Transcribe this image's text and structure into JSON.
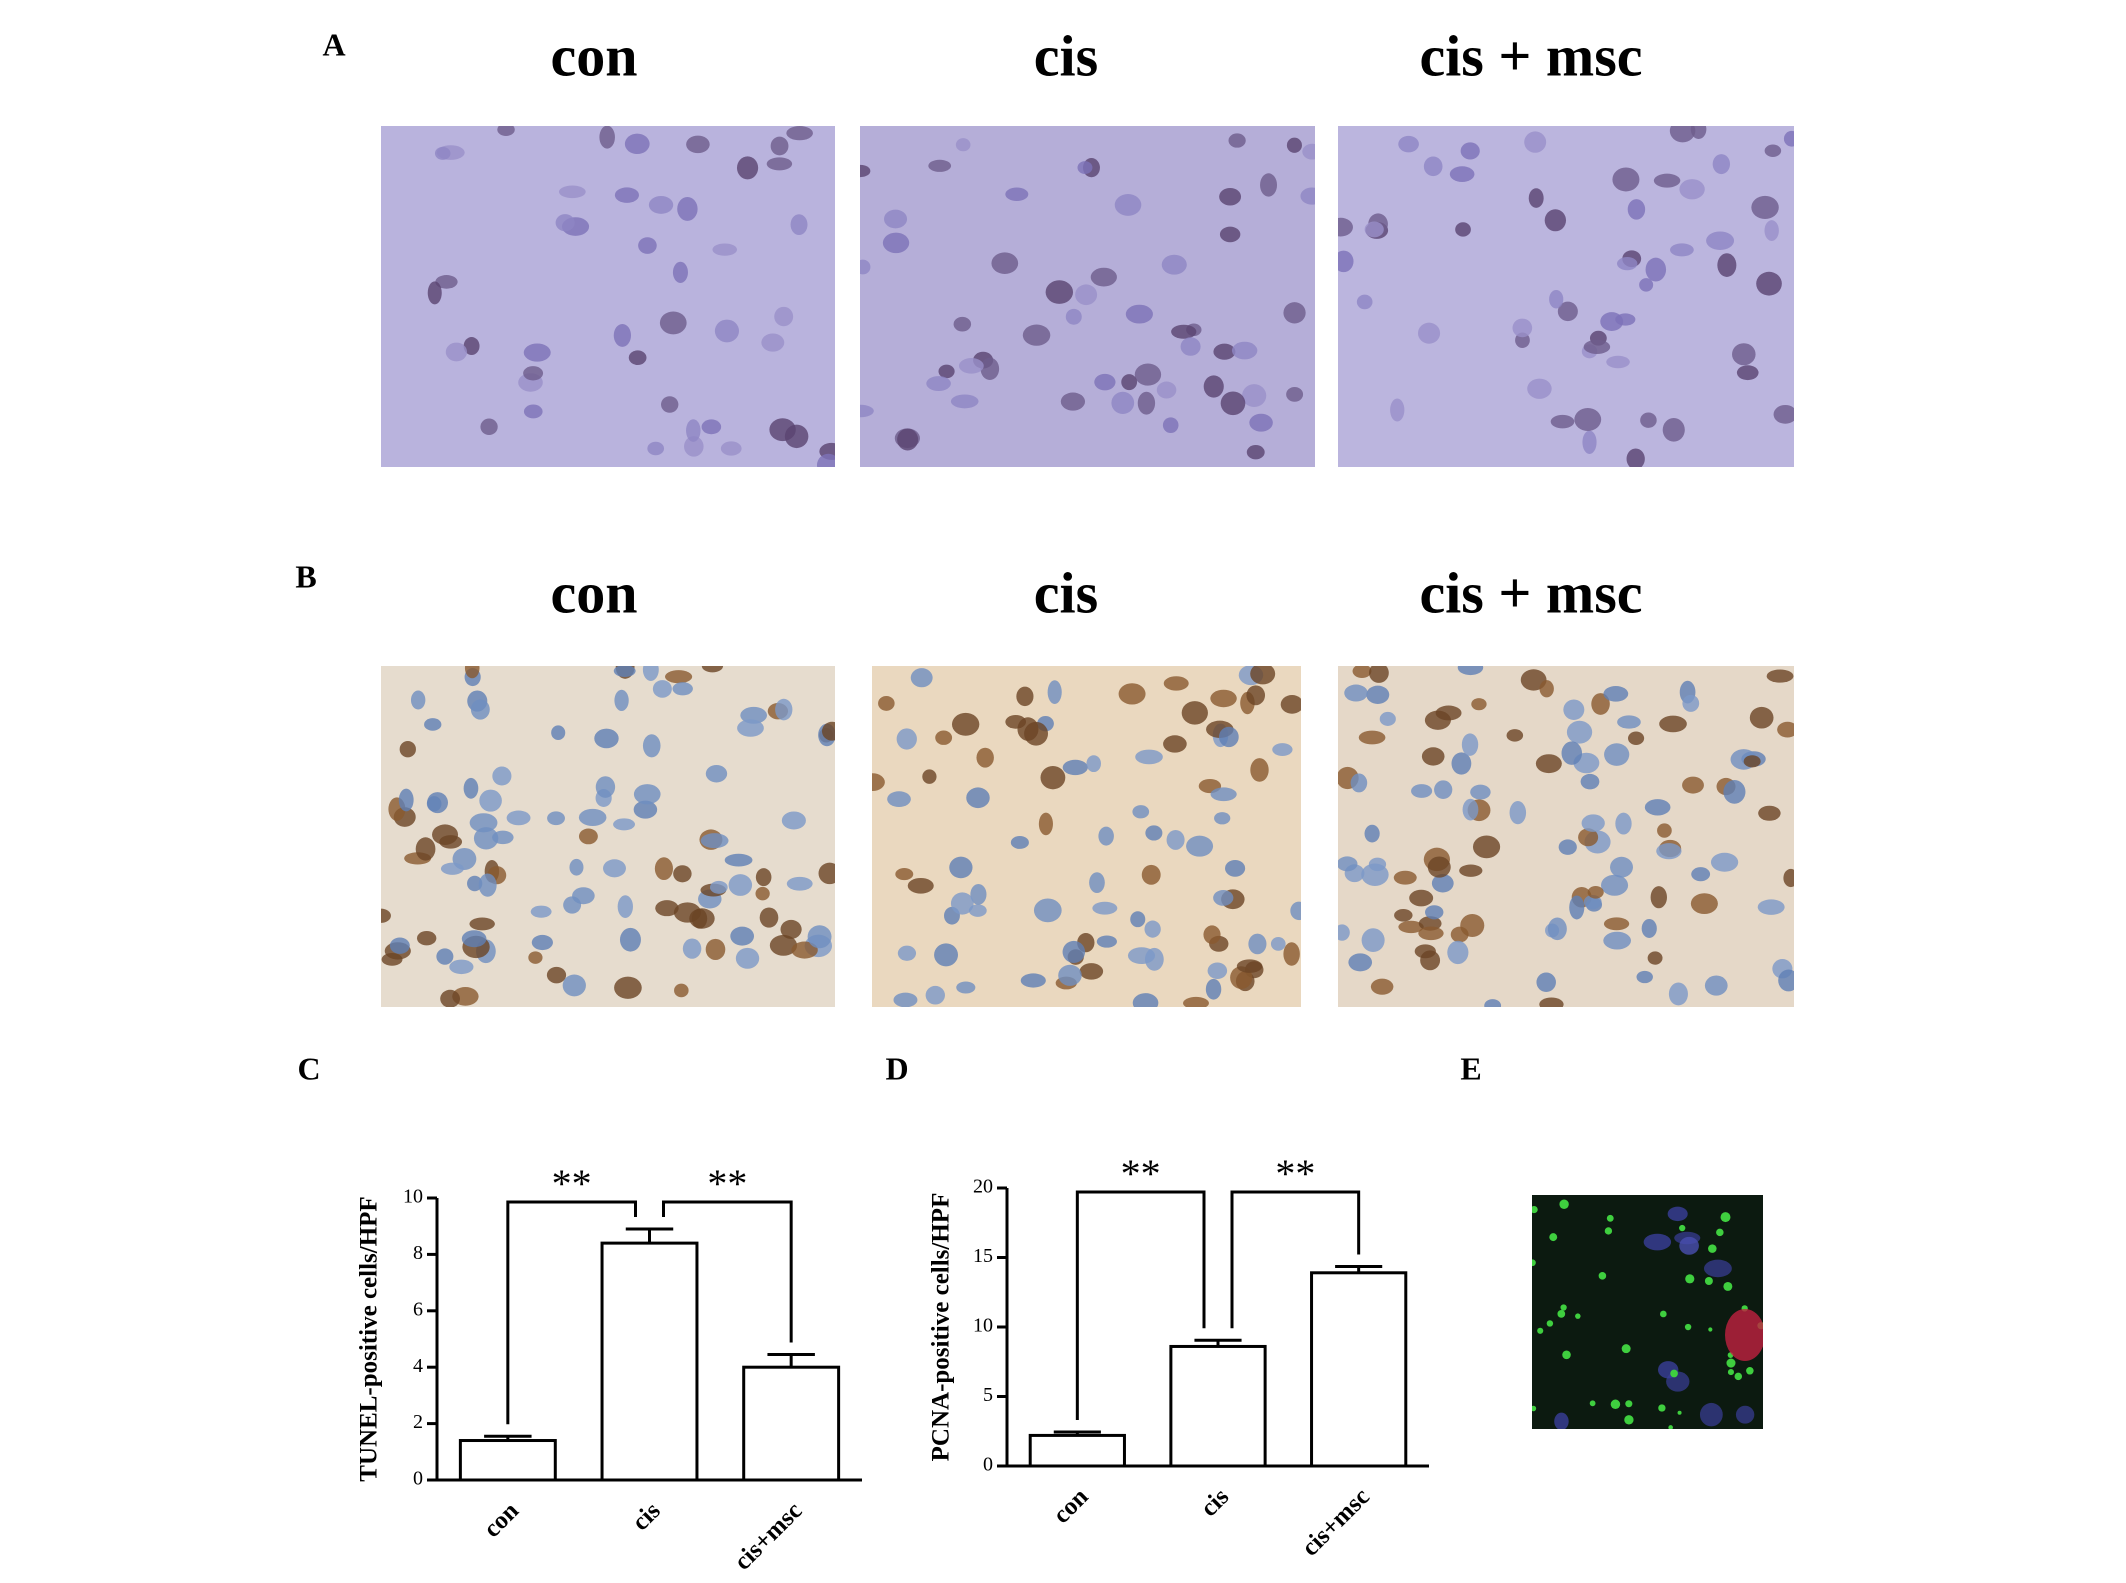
{
  "panels": [
    {
      "label": "A",
      "columns": [
        "con",
        "cis",
        "cis + msc"
      ]
    },
    {
      "label": "B",
      "columns": [
        "con",
        "cis",
        "cis + msc"
      ]
    },
    {
      "label": "E"
    }
  ],
  "chart_data": [
    {
      "type": "bar",
      "panel": "C",
      "ylabel": "TUNEL-positive cells/HPF",
      "categories": [
        "con",
        "cis",
        "cis+msc"
      ],
      "values": [
        1.4,
        8.4,
        4.0
      ],
      "errors": [
        0.15,
        0.5,
        0.45
      ],
      "color": "#ffffff",
      "ylim": [
        0,
        10
      ],
      "yticks": [
        0,
        2,
        4,
        6,
        8,
        10
      ],
      "annotations": [
        "**",
        "**"
      ]
    },
    {
      "type": "bar",
      "panel": "D",
      "ylabel": "PCNA-positive cells/HPF",
      "categories": [
        "con",
        "cis",
        "cis+msc"
      ],
      "values": [
        2.2,
        8.6,
        13.9
      ],
      "errors": [
        0.25,
        0.45,
        0.45
      ],
      "color": "#ffffff",
      "ylim": [
        0,
        20
      ],
      "yticks": [
        0,
        5,
        10,
        15,
        20
      ],
      "annotations": [
        "**",
        "**"
      ]
    }
  ]
}
